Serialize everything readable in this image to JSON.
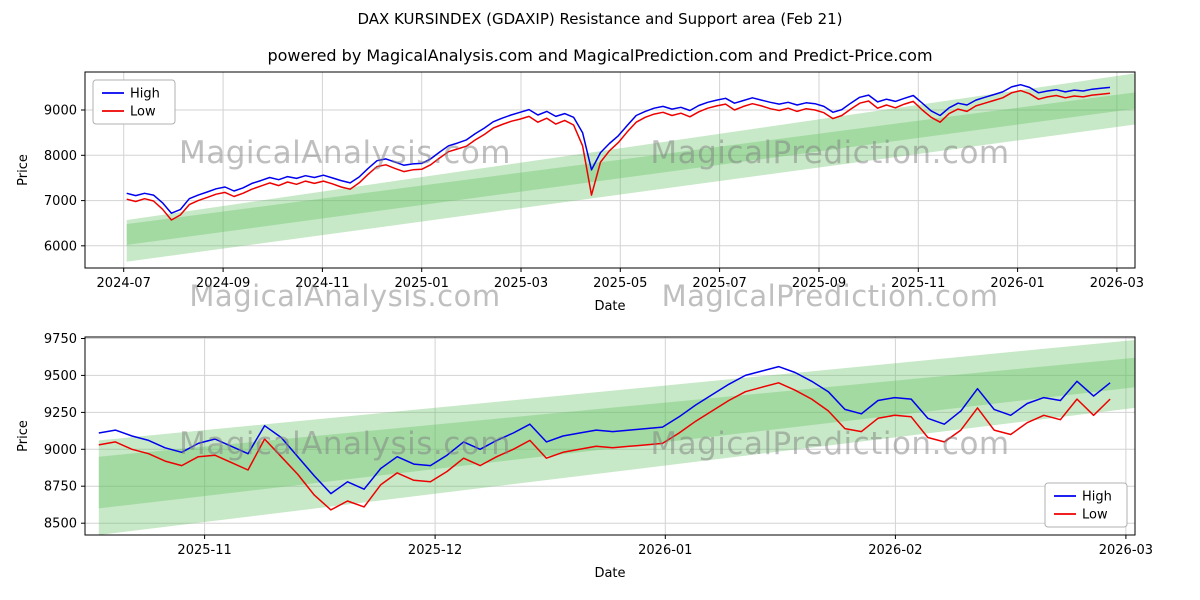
{
  "figure": {
    "title": "DAX KURSINDEX (GDAXIP) Resistance and Support area (Feb 21)",
    "subtitle": "powered by MagicalAnalysis.com and MagicalPrediction.com and Predict-Price.com"
  },
  "watermarks": {
    "left": "MagicalAnalysis.com",
    "right": "MagicalPrediction.com"
  },
  "colors": {
    "high": "#0000ee",
    "low": "#ee0000",
    "band": "#5fbf5f",
    "band_opacity": 0.35,
    "grid": "#d3d3d3",
    "spine": "#000000",
    "watermark": "#808080",
    "legend_border": "#b0b0b0"
  },
  "chart_data": [
    {
      "type": "line",
      "title": "",
      "xlabel": "Date",
      "ylabel": "Price",
      "grid": true,
      "xlim": [
        2024.435,
        2026.197
      ],
      "ylim": [
        5510,
        9840
      ],
      "xticks": [
        {
          "v": 2024.5,
          "label": "2024-07"
        },
        {
          "v": 2024.6667,
          "label": "2024-09"
        },
        {
          "v": 2024.8333,
          "label": "2024-11"
        },
        {
          "v": 2025.0,
          "label": "2025-01"
        },
        {
          "v": 2025.1667,
          "label": "2025-03"
        },
        {
          "v": 2025.3333,
          "label": "2025-05"
        },
        {
          "v": 2025.5,
          "label": "2025-07"
        },
        {
          "v": 2025.6667,
          "label": "2025-09"
        },
        {
          "v": 2025.8333,
          "label": "2025-11"
        },
        {
          "v": 2026.0,
          "label": "2026-01"
        },
        {
          "v": 2026.1667,
          "label": "2026-03"
        }
      ],
      "yticks": [
        {
          "v": 6000,
          "label": "6000"
        },
        {
          "v": 7000,
          "label": "7000"
        },
        {
          "v": 8000,
          "label": "8000"
        },
        {
          "v": 9000,
          "label": "9000"
        }
      ],
      "legend": {
        "position": "upper-left",
        "entries": [
          {
            "label": "High",
            "color": "#0000ee"
          },
          {
            "label": "Low",
            "color": "#ee0000"
          }
        ]
      },
      "bands": [
        {
          "name": "support-band",
          "x": [
            2024.505,
            2026.197
          ],
          "lower": [
            5650,
            8680
          ],
          "upper": [
            6480,
            9390
          ],
          "color": "#5fbf5f",
          "opacity": 0.35
        },
        {
          "name": "resistance-band",
          "x": [
            2024.505,
            2026.197
          ],
          "lower": [
            6020,
            9030
          ],
          "upper": [
            6570,
            9810
          ],
          "color": "#5fbf5f",
          "opacity": 0.35
        }
      ],
      "x": {
        "start": 2024.505,
        "step": 0.015
      },
      "series": [
        {
          "name": "High",
          "color": "#0000ee",
          "values": [
            7160,
            7110,
            7160,
            7120,
            6950,
            6720,
            6800,
            7040,
            7120,
            7190,
            7260,
            7300,
            7210,
            7280,
            7380,
            7440,
            7510,
            7460,
            7530,
            7490,
            7550,
            7510,
            7560,
            7500,
            7440,
            7390,
            7520,
            7710,
            7880,
            7920,
            7850,
            7780,
            7810,
            7820,
            7920,
            8070,
            8210,
            8270,
            8340,
            8480,
            8600,
            8740,
            8820,
            8890,
            8950,
            9010,
            8890,
            8970,
            8860,
            8920,
            8840,
            8500,
            7680,
            8060,
            8260,
            8430,
            8660,
            8880,
            8970,
            9040,
            9080,
            9020,
            9060,
            8990,
            9100,
            9170,
            9220,
            9260,
            9150,
            9210,
            9270,
            9220,
            9170,
            9130,
            9170,
            9110,
            9160,
            9140,
            9080,
            8950,
            9010,
            9150,
            9280,
            9330,
            9180,
            9240,
            9190,
            9260,
            9320,
            9150,
            8980,
            8880,
            9050,
            9150,
            9110,
            9220,
            9280,
            9340,
            9400,
            9510,
            9560,
            9500,
            9380,
            9420,
            9450,
            9400,
            9440,
            9420,
            9460,
            9480,
            9500
          ]
        },
        {
          "name": "Low",
          "color": "#ee0000",
          "values": [
            7030,
            6980,
            7040,
            6990,
            6810,
            6570,
            6680,
            6910,
            7000,
            7070,
            7140,
            7180,
            7090,
            7160,
            7250,
            7320,
            7390,
            7330,
            7410,
            7360,
            7430,
            7380,
            7430,
            7370,
            7300,
            7250,
            7390,
            7580,
            7750,
            7790,
            7710,
            7640,
            7680,
            7690,
            7790,
            7940,
            8080,
            8140,
            8200,
            8340,
            8460,
            8600,
            8680,
            8750,
            8800,
            8860,
            8730,
            8820,
            8690,
            8770,
            8670,
            8210,
            7120,
            7850,
            8100,
            8280,
            8520,
            8730,
            8840,
            8910,
            8950,
            8880,
            8930,
            8850,
            8960,
            9040,
            9090,
            9130,
            9000,
            9080,
            9140,
            9090,
            9030,
            8990,
            9040,
            8970,
            9030,
            9000,
            8940,
            8810,
            8880,
            9020,
            9150,
            9200,
            9040,
            9110,
            9050,
            9130,
            9190,
            9000,
            8840,
            8730,
            8920,
            9020,
            8970,
            9090,
            9150,
            9210,
            9270,
            9380,
            9430,
            9360,
            9240,
            9290,
            9320,
            9270,
            9310,
            9290,
            9330,
            9350,
            9370
          ]
        }
      ]
    },
    {
      "type": "line",
      "title": "",
      "xlabel": "Date",
      "ylabel": "Price",
      "grid": true,
      "xlim": [
        2025.79,
        2026.17
      ],
      "ylim": [
        8420,
        9760
      ],
      "xticks": [
        {
          "v": 2025.8333,
          "label": "2025-11"
        },
        {
          "v": 2025.9167,
          "label": "2025-12"
        },
        {
          "v": 2026.0,
          "label": "2026-01"
        },
        {
          "v": 2026.0833,
          "label": "2026-02"
        },
        {
          "v": 2026.1667,
          "label": "2026-03"
        }
      ],
      "yticks": [
        {
          "v": 8500,
          "label": "8500"
        },
        {
          "v": 8750,
          "label": "8750"
        },
        {
          "v": 9000,
          "label": "9000"
        },
        {
          "v": 9250,
          "label": "9250"
        },
        {
          "v": 9500,
          "label": "9500"
        },
        {
          "v": 9750,
          "label": "9750"
        }
      ],
      "legend": {
        "position": "lower-right",
        "entries": [
          {
            "label": "High",
            "color": "#0000ee"
          },
          {
            "label": "Low",
            "color": "#ee0000"
          }
        ]
      },
      "bands": [
        {
          "name": "support-band",
          "x": [
            2025.795,
            2026.17
          ],
          "lower": [
            8420,
            9280
          ],
          "upper": [
            8950,
            9620
          ],
          "color": "#5fbf5f",
          "opacity": 0.35
        },
        {
          "name": "resistance-band",
          "x": [
            2025.795,
            2026.17
          ],
          "lower": [
            8600,
            9420
          ],
          "upper": [
            9060,
            9740
          ],
          "color": "#5fbf5f",
          "opacity": 0.35
        }
      ],
      "x": {
        "start": 2025.795,
        "step": 0.006
      },
      "series": [
        {
          "name": "High",
          "color": "#0000ee",
          "values": [
            9110,
            9130,
            9090,
            9060,
            9010,
            8980,
            9040,
            9070,
            9020,
            8970,
            9160,
            9080,
            8950,
            8820,
            8700,
            8780,
            8730,
            8870,
            8950,
            8900,
            8890,
            8960,
            9050,
            9000,
            9060,
            9110,
            9170,
            9050,
            9090,
            9110,
            9130,
            9120,
            9130,
            9140,
            9150,
            9220,
            9300,
            9370,
            9440,
            9500,
            9530,
            9560,
            9520,
            9460,
            9390,
            9270,
            9240,
            9330,
            9350,
            9340,
            9210,
            9170,
            9260,
            9410,
            9270,
            9230,
            9310,
            9350,
            9330,
            9460,
            9360,
            9450
          ]
        },
        {
          "name": "Low",
          "color": "#ee0000",
          "values": [
            9030,
            9050,
            9000,
            8970,
            8920,
            8890,
            8950,
            8960,
            8910,
            8860,
            9070,
            8950,
            8830,
            8690,
            8590,
            8650,
            8610,
            8760,
            8840,
            8790,
            8780,
            8850,
            8940,
            8890,
            8950,
            9000,
            9060,
            8940,
            8980,
            9000,
            9020,
            9010,
            9020,
            9030,
            9040,
            9110,
            9190,
            9260,
            9330,
            9390,
            9420,
            9450,
            9400,
            9340,
            9260,
            9140,
            9120,
            9210,
            9230,
            9220,
            9080,
            9050,
            9130,
            9280,
            9130,
            9100,
            9180,
            9230,
            9200,
            9340,
            9230,
            9340
          ]
        }
      ]
    }
  ]
}
